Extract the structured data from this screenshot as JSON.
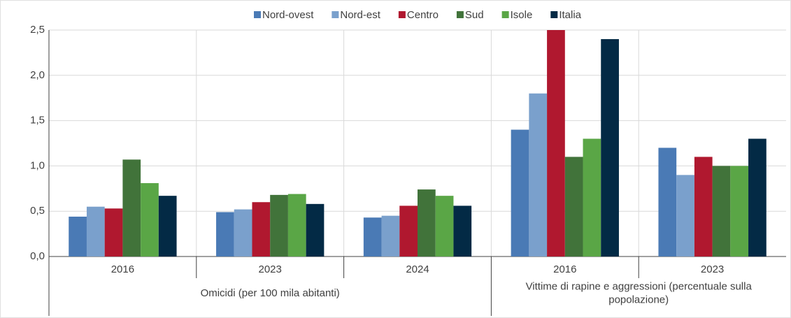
{
  "chart_data": {
    "type": "bar",
    "groups": [
      {
        "label": "Omicidi (per 100 mila abitanti)",
        "categories": [
          "2016",
          "2023",
          "2024"
        ]
      },
      {
        "label": "Vittime di rapine e aggressioni (percentuale sulla popolazione)",
        "categories": [
          "2016",
          "2023"
        ]
      }
    ],
    "series": [
      {
        "name": "Nord-ovest",
        "color": "#4a7ab5",
        "values": [
          0.44,
          0.49,
          0.43,
          1.4,
          1.2
        ]
      },
      {
        "name": "Nord-est",
        "color": "#7aa0cc",
        "values": [
          0.55,
          0.52,
          0.45,
          1.8,
          0.9
        ]
      },
      {
        "name": "Centro",
        "color": "#b0182f",
        "values": [
          0.53,
          0.6,
          0.56,
          2.5,
          1.1
        ]
      },
      {
        "name": "Sud",
        "color": "#41733a",
        "values": [
          1.07,
          0.68,
          0.74,
          1.1,
          1.0
        ]
      },
      {
        "name": "Isole",
        "color": "#5aa646",
        "values": [
          0.81,
          0.69,
          0.67,
          1.3,
          1.0
        ]
      },
      {
        "name": "Italia",
        "color": "#032a45",
        "values": [
          0.67,
          0.58,
          0.56,
          2.4,
          1.3
        ]
      }
    ],
    "ylim": [
      0,
      2.5
    ],
    "yticks": [
      {
        "value": 0,
        "label": "0,0"
      },
      {
        "value": 0.5,
        "label": "0,5"
      },
      {
        "value": 1,
        "label": "1,0"
      },
      {
        "value": 1.5,
        "label": "1,5"
      },
      {
        "value": 2,
        "label": "2,0"
      },
      {
        "value": 2.5,
        "label": "2,5"
      }
    ],
    "grid": true,
    "legend": "top"
  }
}
